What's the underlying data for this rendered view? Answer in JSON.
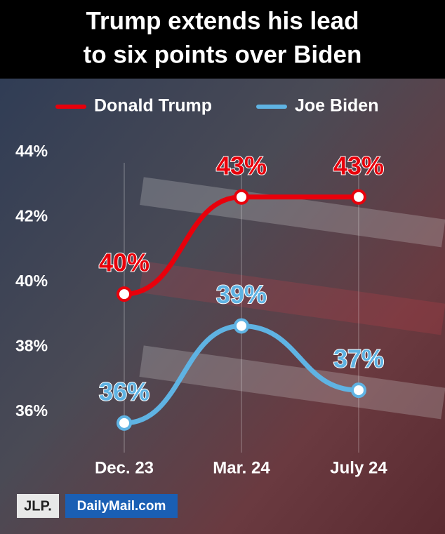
{
  "chart_data": {
    "type": "line",
    "title": [
      "Trump extends his lead",
      "to six points over Biden"
    ],
    "categories": [
      "Dec. 23",
      "Mar. 24",
      "July 24"
    ],
    "series": [
      {
        "name": "Donald Trump",
        "color": "#e8000b",
        "values": [
          39.63,
          42.62,
          42.62
        ],
        "value_labels": [
          "40%",
          "43%",
          "43%"
        ]
      },
      {
        "name": "Joe Biden",
        "color": "#5fb3e3",
        "values": [
          35.66,
          38.65,
          36.67
        ],
        "value_labels": [
          "36%",
          "39%",
          "37%"
        ]
      }
    ],
    "ylim": [
      35.5,
      44.5
    ],
    "yticks": [
      {
        "value": 36,
        "label": "36%"
      },
      {
        "value": 38,
        "label": "38%"
      },
      {
        "value": 40,
        "label": "40%"
      },
      {
        "value": 42,
        "label": "42%"
      },
      {
        "value": 44,
        "label": "44%"
      }
    ],
    "grid": true,
    "legend": "top",
    "logos": [
      "JLP.",
      "DailyMail.com"
    ]
  }
}
